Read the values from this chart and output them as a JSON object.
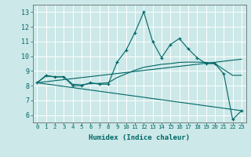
{
  "title": "",
  "xlabel": "Humidex (Indice chaleur)",
  "ylabel": "",
  "bg_color": "#cce8e8",
  "grid_color": "#ffffff",
  "line_color": "#006666",
  "xlim": [
    -0.5,
    23.5
  ],
  "ylim": [
    5.5,
    13.5
  ],
  "xticks": [
    0,
    1,
    2,
    3,
    4,
    5,
    6,
    7,
    8,
    9,
    10,
    11,
    12,
    13,
    14,
    15,
    16,
    17,
    18,
    19,
    20,
    21,
    22,
    23
  ],
  "yticks": [
    6,
    7,
    8,
    9,
    10,
    11,
    12,
    13
  ],
  "series": [
    {
      "x": [
        0,
        1,
        2,
        3,
        4,
        5,
        6,
        7,
        8,
        9,
        10,
        11,
        12,
        13,
        14,
        15,
        16,
        17,
        18,
        19,
        20,
        21,
        22,
        23
      ],
      "y": [
        8.2,
        8.7,
        8.6,
        8.6,
        8.0,
        8.0,
        8.2,
        8.1,
        8.1,
        9.6,
        10.4,
        11.6,
        13.0,
        11.0,
        9.9,
        10.8,
        11.2,
        10.5,
        9.9,
        9.5,
        9.5,
        8.8,
        5.7,
        6.3
      ],
      "marker": true
    },
    {
      "x": [
        0,
        1,
        2,
        3,
        4,
        5,
        6,
        7,
        8,
        9,
        10,
        11,
        12,
        13,
        14,
        15,
        16,
        17,
        18,
        19,
        20,
        21,
        22,
        23
      ],
      "y": [
        8.2,
        8.65,
        8.6,
        8.6,
        8.1,
        8.05,
        8.15,
        8.15,
        8.2,
        8.55,
        8.8,
        9.05,
        9.25,
        9.35,
        9.45,
        9.5,
        9.58,
        9.6,
        9.6,
        9.58,
        9.5,
        9.1,
        8.7,
        8.7
      ],
      "marker": false
    },
    {
      "x": [
        0,
        23
      ],
      "y": [
        8.2,
        9.8
      ],
      "marker": false
    },
    {
      "x": [
        0,
        23
      ],
      "y": [
        8.2,
        6.3
      ],
      "marker": false
    }
  ]
}
